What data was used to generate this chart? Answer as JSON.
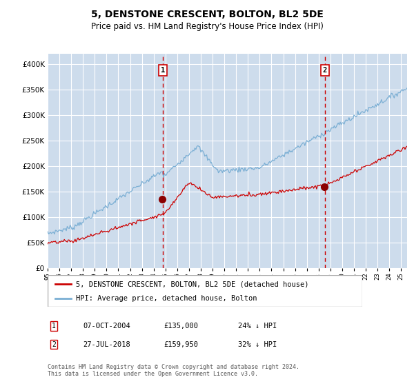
{
  "title": "5, DENSTONE CRESCENT, BOLTON, BL2 5DE",
  "subtitle": "Price paid vs. HM Land Registry's House Price Index (HPI)",
  "title_fontsize": 10,
  "subtitle_fontsize": 8.5,
  "legend_line1": "5, DENSTONE CRESCENT, BOLTON, BL2 5DE (detached house)",
  "legend_line2": "HPI: Average price, detached house, Bolton",
  "footer": "Contains HM Land Registry data © Crown copyright and database right 2024.\nThis data is licensed under the Open Government Licence v3.0.",
  "sale1_date": "07-OCT-2004",
  "sale1_price": 135000,
  "sale1_label": "24% ↓ HPI",
  "sale2_date": "27-JUL-2018",
  "sale2_price": 159950,
  "sale2_label": "32% ↓ HPI",
  "ylim": [
    0,
    420000
  ],
  "yticks": [
    0,
    50000,
    100000,
    150000,
    200000,
    250000,
    300000,
    350000,
    400000
  ],
  "xlim_start": 1995,
  "xlim_end": 2025.5,
  "hpi_color": "#7bafd4",
  "price_color": "#cc0000",
  "sale_marker_color": "#8b0000",
  "dashed_line_color": "#cc0000",
  "shade_color": "#cddcec",
  "grid_color": "#ffffff",
  "sale1_x": 2004.79,
  "sale2_x": 2018.54
}
